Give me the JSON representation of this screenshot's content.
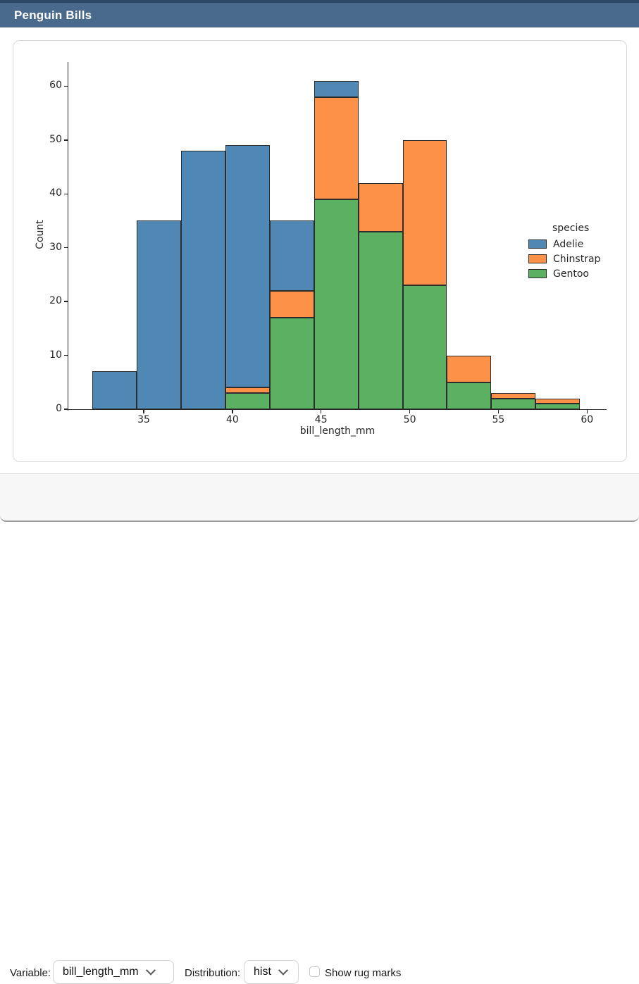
{
  "window": {
    "title": "Penguin Bills"
  },
  "controls": {
    "variable_label": "Variable:",
    "variable_value": "bill_length_mm",
    "distribution_label": "Distribution:",
    "distribution_value": "hist",
    "rug_label": "Show rug marks",
    "rug_checked": false
  },
  "chart_data": {
    "type": "bar",
    "subtype": "stacked_histogram",
    "xlabel": "bill_length_mm",
    "ylabel": "Count",
    "legend_title": "species",
    "legend_position": "center right",
    "grid": false,
    "bin_edges": [
      32.1,
      34.6,
      37.1,
      39.6,
      42.1,
      44.6,
      47.1,
      49.6,
      52.1,
      54.6,
      57.1,
      59.6
    ],
    "series": [
      {
        "name": "Adelie",
        "color": "#4f88b5",
        "values": [
          7,
          35,
          48,
          45,
          13,
          3,
          0,
          0,
          0,
          0,
          0
        ]
      },
      {
        "name": "Chinstrap",
        "color": "#fd9148",
        "values": [
          0,
          0,
          0,
          1,
          5,
          19,
          9,
          27,
          5,
          1,
          1
        ]
      },
      {
        "name": "Gentoo",
        "color": "#5bb161",
        "values": [
          0,
          0,
          0,
          3,
          17,
          39,
          33,
          23,
          5,
          2,
          1
        ]
      }
    ],
    "stack_order_bottom_to_top": [
      "Gentoo",
      "Chinstrap",
      "Adelie"
    ],
    "bin_totals": [
      7,
      35,
      48,
      49,
      35,
      61,
      42,
      50,
      10,
      3,
      2
    ],
    "x_ticks": [
      35,
      40,
      45,
      50,
      55,
      60
    ],
    "y_ticks": [
      0,
      10,
      20,
      30,
      40,
      50,
      60
    ],
    "xlim": [
      30.75,
      61.1
    ],
    "ylim": [
      0,
      64.5
    ],
    "edge_color": "#2d2d2d"
  }
}
